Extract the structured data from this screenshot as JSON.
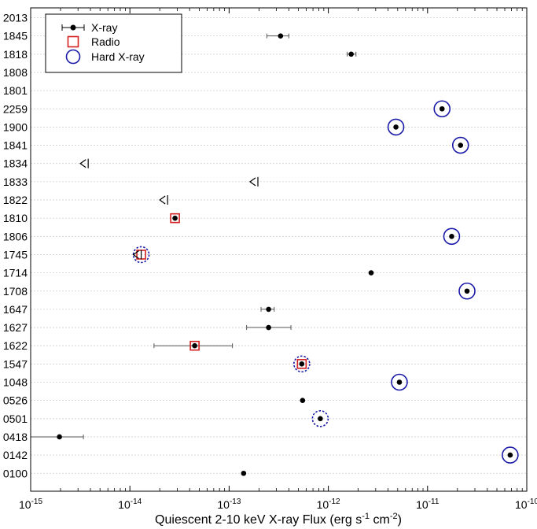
{
  "chart_data": {
    "type": "scatter",
    "title": "",
    "xlabel": "Quiescent 2-10 keV X-ray Flux (erg s",
    "xlabel_sup1": "-1",
    "xlabel_mid": " cm",
    "xlabel_sup2": "-2",
    "xlabel_end": ")",
    "ylabel": "",
    "xscale": "log",
    "xlim": [
      1e-15,
      1e-10
    ],
    "x_ticks": [
      {
        "base": "10",
        "exp": "-15"
      },
      {
        "base": "10",
        "exp": "-14"
      },
      {
        "base": "10",
        "exp": "-13"
      },
      {
        "base": "10",
        "exp": "-12"
      },
      {
        "base": "10",
        "exp": "-11"
      },
      {
        "base": "10",
        "exp": "-10"
      }
    ],
    "grid": true,
    "legend_position": "top-left",
    "legend": [
      {
        "label": "X-ray",
        "marker": "point-errorbar",
        "color": "#000000"
      },
      {
        "label": "Radio",
        "marker": "square",
        "color": "#d42020"
      },
      {
        "label": "Hard X-ray",
        "marker": "circle",
        "color": "#1a1aa8"
      }
    ],
    "categories": [
      "2013",
      "1845",
      "1818",
      "1808",
      "1801",
      "2259",
      "1900",
      "1841",
      "1834",
      "1833",
      "1822",
      "1810",
      "1806",
      "1745",
      "1714",
      "1708",
      "1647",
      "1627",
      "1622",
      "1547",
      "1048",
      "0526",
      "0501",
      "0418",
      "0142",
      "0100"
    ],
    "points": [
      {
        "name": "2013",
        "x": null
      },
      {
        "name": "1845",
        "x": 3.3e-13,
        "xerr_lo": 2.4e-13,
        "xerr_hi": 4e-13
      },
      {
        "name": "1818",
        "x": 1.7e-12,
        "xerr_lo": 1.55e-12,
        "xerr_hi": 1.9e-12
      },
      {
        "name": "1808",
        "x": null
      },
      {
        "name": "1801",
        "x": null
      },
      {
        "name": "2259",
        "x": 1.4e-11,
        "hard": "solid"
      },
      {
        "name": "1900",
        "x": 4.8e-12,
        "hard": "solid"
      },
      {
        "name": "1841",
        "x": 2.15e-11,
        "hard": "solid"
      },
      {
        "name": "1834",
        "x": 3.8e-15,
        "upper_limit": true
      },
      {
        "name": "1833",
        "x": 1.95e-13,
        "upper_limit": true
      },
      {
        "name": "1822",
        "x": 2.4e-14,
        "upper_limit": true
      },
      {
        "name": "1810",
        "x": 2.85e-14,
        "radio": true
      },
      {
        "name": "1806",
        "x": 1.75e-11,
        "hard": "solid"
      },
      {
        "name": "1745",
        "x": 1.3e-14,
        "upper_limit": true,
        "radio": true,
        "hard": "dashed"
      },
      {
        "name": "1714",
        "x": 2.7e-12
      },
      {
        "name": "1708",
        "x": 2.5e-11,
        "hard": "solid"
      },
      {
        "name": "1647",
        "x": 2.5e-13,
        "xerr_lo": 2.1e-13,
        "xerr_hi": 2.85e-13
      },
      {
        "name": "1627",
        "x": 2.5e-13,
        "xerr_lo": 1.5e-13,
        "xerr_hi": 4.2e-13
      },
      {
        "name": "1622",
        "x": 4.5e-14,
        "xerr_lo": 1.75e-14,
        "xerr_hi": 1.08e-13,
        "radio": true
      },
      {
        "name": "1547",
        "x": 5.4e-13,
        "radio": true,
        "hard": "dashed"
      },
      {
        "name": "1048",
        "x": 5.2e-12,
        "hard": "solid"
      },
      {
        "name": "0526",
        "x": 5.5e-13
      },
      {
        "name": "0501",
        "x": 8.3e-13,
        "hard": "dashed"
      },
      {
        "name": "0418",
        "x": 1.95e-15,
        "xerr_lo": 1e-15,
        "xerr_hi": 3.4e-15
      },
      {
        "name": "0142",
        "x": 6.8e-11,
        "hard": "solid"
      },
      {
        "name": "0100",
        "x": 1.4e-13
      }
    ]
  }
}
